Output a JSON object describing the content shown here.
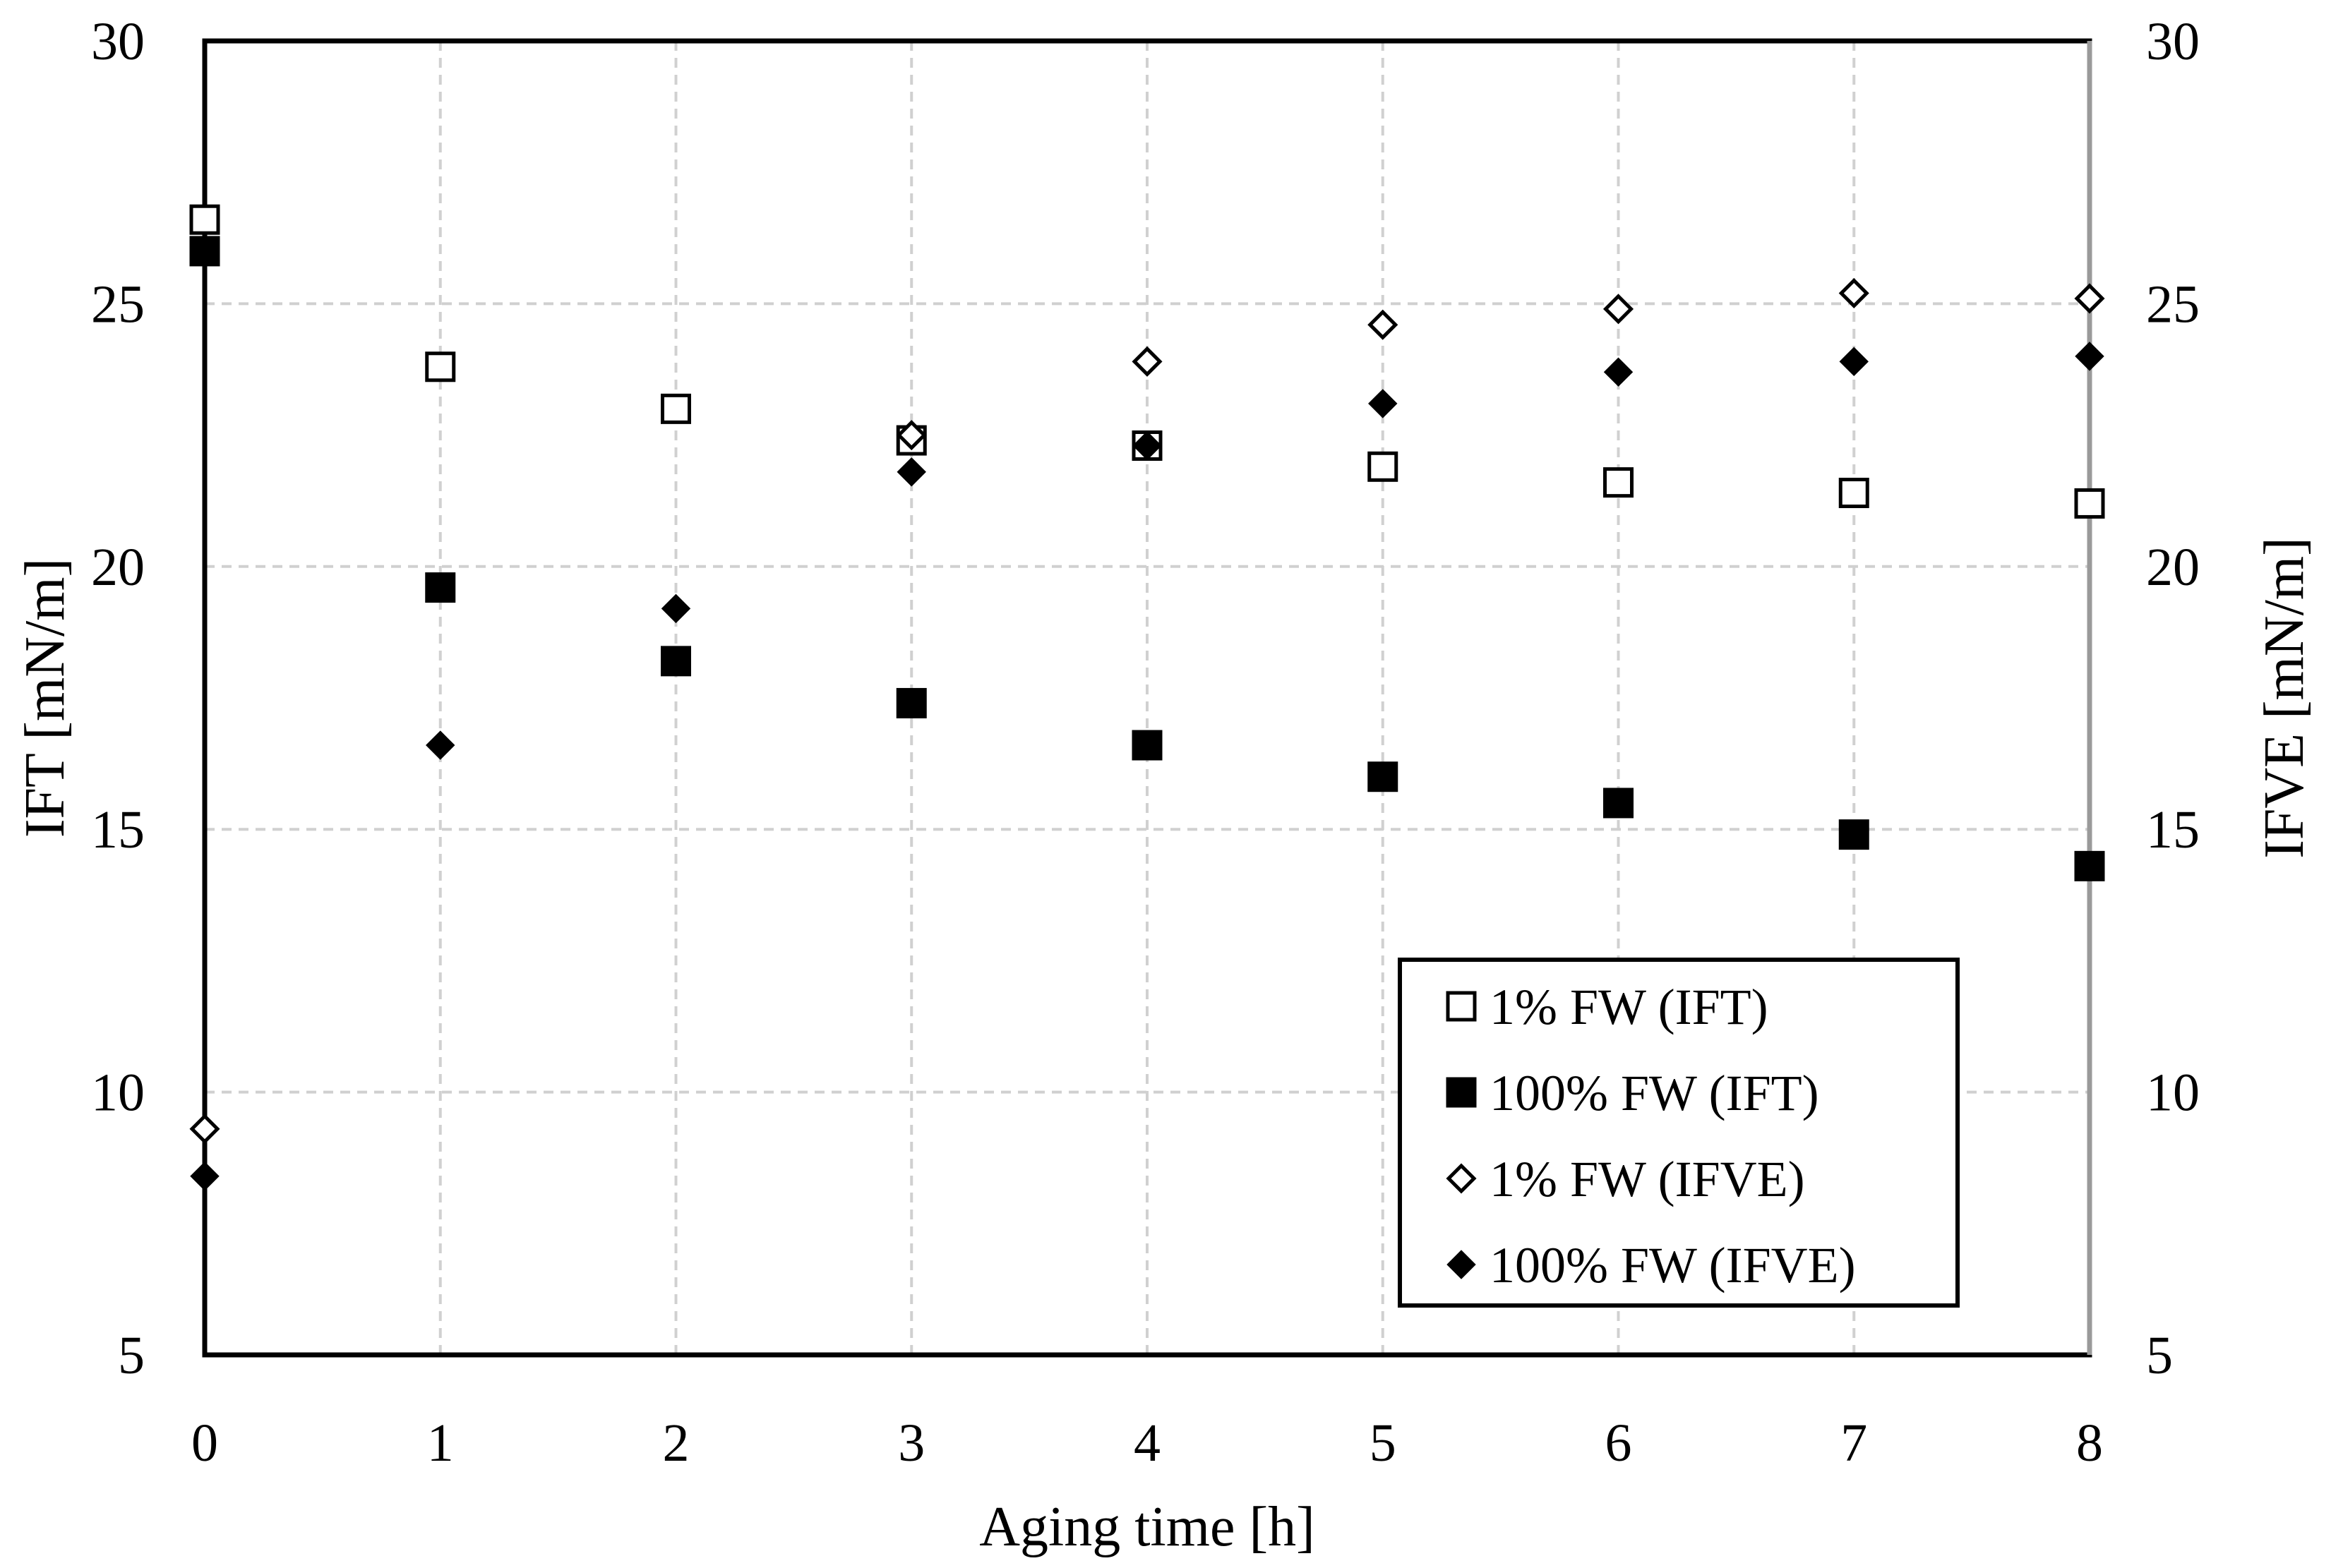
{
  "chart_data": {
    "type": "scatter",
    "title": "",
    "xlabel": "Aging time [h]",
    "ylabel_left": "IFT [mN/m]",
    "ylabel_right": "IFVE [mN/m]",
    "xlim": [
      0,
      8
    ],
    "ylim_left": [
      5,
      30
    ],
    "ylim_right": [
      5,
      30
    ],
    "x_ticks": [
      "0",
      "1",
      "2",
      "3",
      "4",
      "5",
      "6",
      "7",
      "8"
    ],
    "y_ticks_left": [
      "5",
      "10",
      "15",
      "20",
      "25",
      "30"
    ],
    "y_ticks_right": [
      "5",
      "10",
      "15",
      "20",
      "25",
      "30"
    ],
    "grid": true,
    "legend_position": "bottom-right",
    "series": [
      {
        "name": "1% FW (IFT)",
        "marker": "square-open",
        "axis": "left",
        "x": [
          0,
          1,
          2,
          3,
          4,
          5,
          6,
          7,
          8
        ],
        "y": [
          26.6,
          23.8,
          23.0,
          22.4,
          22.3,
          21.9,
          21.6,
          21.4,
          21.2
        ]
      },
      {
        "name": "100% FW (IFT)",
        "marker": "square-filled",
        "axis": "left",
        "x": [
          0,
          1,
          2,
          3,
          4,
          5,
          6,
          7,
          8
        ],
        "y": [
          26.0,
          19.6,
          18.2,
          17.4,
          16.6,
          16.0,
          15.5,
          14.9,
          14.3
        ]
      },
      {
        "name": "1% FW (IFVE)",
        "marker": "diamond-open",
        "axis": "right",
        "x": [
          0,
          3,
          4,
          5,
          6,
          7,
          8
        ],
        "y": [
          9.3,
          22.5,
          23.9,
          24.6,
          24.9,
          25.2,
          25.1
        ]
      },
      {
        "name": "100% FW (IFVE)",
        "marker": "diamond-filled",
        "axis": "right",
        "x": [
          0,
          1,
          2,
          3,
          4,
          5,
          6,
          7,
          8
        ],
        "y": [
          8.4,
          16.6,
          19.2,
          21.8,
          22.3,
          23.1,
          23.7,
          23.9,
          24.0
        ]
      }
    ]
  }
}
